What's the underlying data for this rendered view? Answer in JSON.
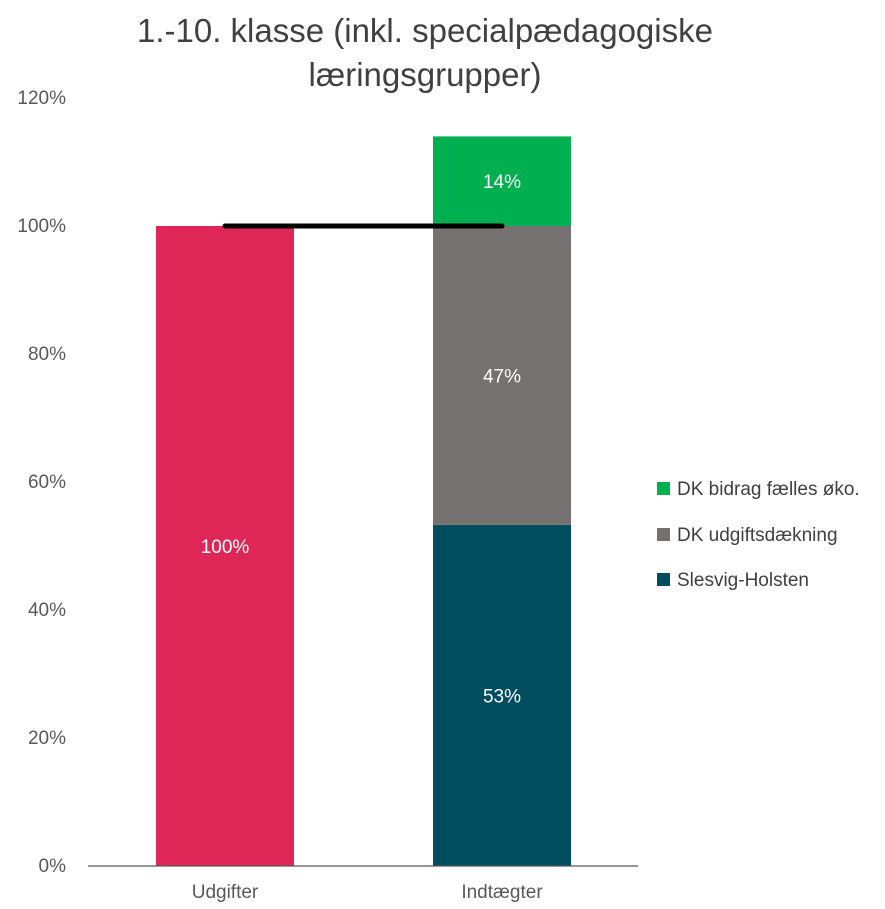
{
  "chart_data": {
    "type": "bar",
    "stacked": true,
    "title_lines": [
      "1.-10. klasse (inkl. specialpædagogiske",
      "læringsgrupper)"
    ],
    "categories": [
      "Udgifter",
      "Indtægter"
    ],
    "ylim": [
      0,
      1.2
    ],
    "yticks": [
      {
        "value": 0,
        "label": "0%"
      },
      {
        "value": 0.2,
        "label": "20%"
      },
      {
        "value": 0.4,
        "label": "40%"
      },
      {
        "value": 0.6,
        "label": "60%"
      },
      {
        "value": 0.8,
        "label": "80%"
      },
      {
        "value": 1.0,
        "label": "100%"
      },
      {
        "value": 1.2,
        "label": "120%"
      }
    ],
    "grid": false,
    "legend_position": "right",
    "segments": [
      {
        "category": 0,
        "base": 0,
        "value": 1.0,
        "label": "100%",
        "color": "#DE2757"
      },
      {
        "category": 1,
        "base": 0,
        "value": 0.533,
        "label": "53%",
        "color": "#004D5F",
        "series": "Slesvig-Holsten"
      },
      {
        "category": 1,
        "base": 0.533,
        "value": 0.467,
        "label": "47%",
        "color": "#757170",
        "series": "DK udgiftsdækning"
      },
      {
        "category": 1,
        "base": 1.0,
        "value": 0.14,
        "label": "14%",
        "color": "#00AF50",
        "series": "DK bidrag fælles øko."
      }
    ],
    "reference_line": {
      "value": 1.0,
      "color": "#000000"
    },
    "legend": [
      {
        "label": "DK bidrag fælles øko.",
        "color": "#00AF50"
      },
      {
        "label": "DK udgiftsdækning",
        "color": "#757170"
      },
      {
        "label": "Slesvig-Holsten",
        "color": "#004D5F"
      }
    ]
  }
}
